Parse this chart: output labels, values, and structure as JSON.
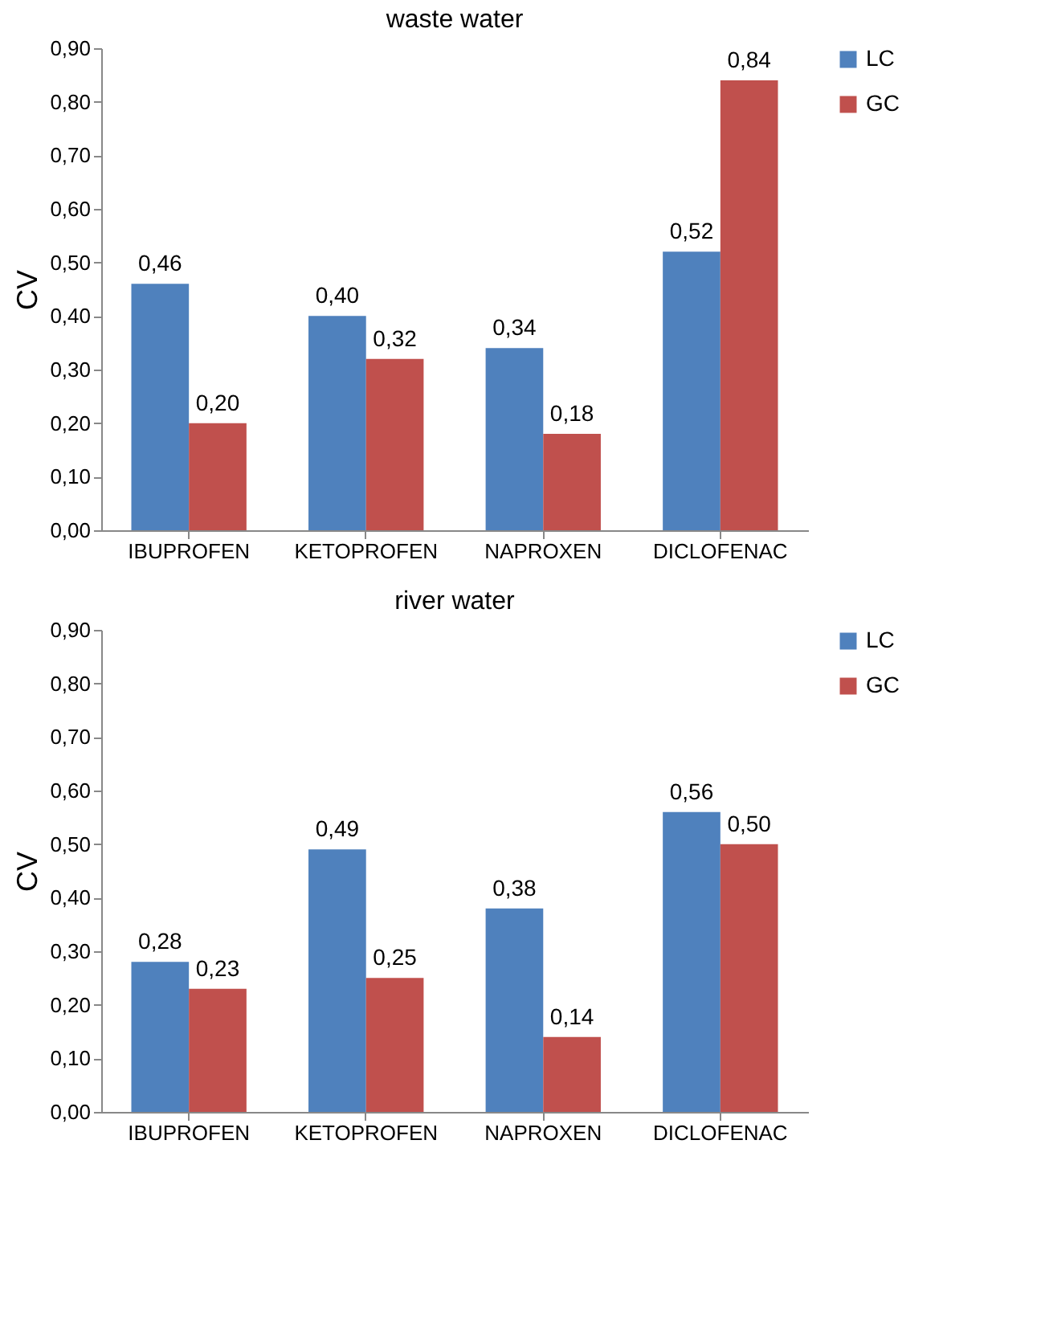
{
  "chart_data": [
    {
      "type": "bar",
      "title": "waste water",
      "ylabel": "CV",
      "categories": [
        "IBUPROFEN",
        "KETOPROFEN",
        "NAPROXEN",
        "DICLOFENAC"
      ],
      "series": [
        {
          "name": "LC",
          "color": "#4f81bd",
          "values": [
            0.46,
            0.4,
            0.34,
            0.52
          ],
          "value_labels": [
            "0,46",
            "0,40",
            "0,34",
            "0,52"
          ]
        },
        {
          "name": "GC",
          "color": "#c0504d",
          "values": [
            0.2,
            0.32,
            0.18,
            0.84
          ],
          "value_labels": [
            "0,20",
            "0,32",
            "0,18",
            "0,84"
          ]
        }
      ],
      "ylim": [
        0,
        0.9
      ],
      "yticks": [
        {
          "value": 0,
          "label": "0,00"
        },
        {
          "value": 0.1,
          "label": "0,10"
        },
        {
          "value": 0.2,
          "label": "0,20"
        },
        {
          "value": 0.3,
          "label": "0,30"
        },
        {
          "value": 0.4,
          "label": "0,40"
        },
        {
          "value": 0.5,
          "label": "0,50"
        },
        {
          "value": 0.6,
          "label": "0,60"
        },
        {
          "value": 0.7,
          "label": "0,70"
        },
        {
          "value": 0.8,
          "label": "0,80"
        },
        {
          "value": 0.9,
          "label": "0,90"
        }
      ],
      "grid": false,
      "legend": "right"
    },
    {
      "type": "bar",
      "title": "river water",
      "ylabel": "CV",
      "categories": [
        "IBUPROFEN",
        "KETOPROFEN",
        "NAPROXEN",
        "DICLOFENAC"
      ],
      "series": [
        {
          "name": "LC",
          "color": "#4f81bd",
          "values": [
            0.28,
            0.49,
            0.38,
            0.56
          ],
          "value_labels": [
            "0,28",
            "0,49",
            "0,38",
            "0,56"
          ]
        },
        {
          "name": "GC",
          "color": "#c0504d",
          "values": [
            0.23,
            0.25,
            0.14,
            0.5
          ],
          "value_labels": [
            "0,23",
            "0,25",
            "0,14",
            "0,50"
          ]
        }
      ],
      "ylim": [
        0,
        0.9
      ],
      "yticks": [
        {
          "value": 0,
          "label": "0,00"
        },
        {
          "value": 0.1,
          "label": "0,10"
        },
        {
          "value": 0.2,
          "label": "0,20"
        },
        {
          "value": 0.3,
          "label": "0,30"
        },
        {
          "value": 0.4,
          "label": "0,40"
        },
        {
          "value": 0.5,
          "label": "0,50"
        },
        {
          "value": 0.6,
          "label": "0,60"
        },
        {
          "value": 0.7,
          "label": "0,70"
        },
        {
          "value": 0.8,
          "label": "0,80"
        },
        {
          "value": 0.9,
          "label": "0,90"
        }
      ],
      "grid": false,
      "legend": "right"
    }
  ]
}
